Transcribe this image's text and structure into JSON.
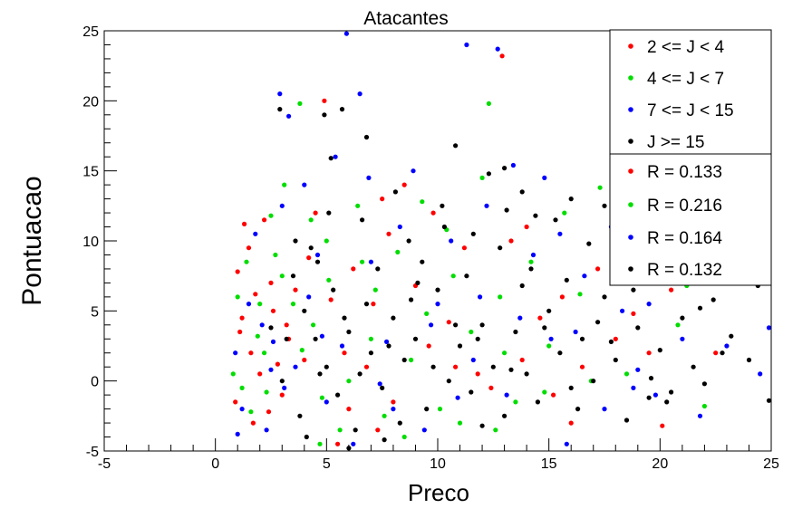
{
  "chart_data": {
    "type": "scatter",
    "title": "Atacantes",
    "xlabel": "Preco",
    "ylabel": "Pontuacao",
    "xlim": [
      -5,
      25
    ],
    "ylim": [
      -5,
      25
    ],
    "xticks": [
      -5,
      0,
      5,
      10,
      15,
      20,
      25
    ],
    "yticks": [
      -5,
      0,
      5,
      10,
      15,
      20,
      25
    ],
    "grid": false,
    "legend_position": "top-right",
    "series": [
      {
        "name": "2 <= J < 4",
        "color": "#ff0000",
        "points": [
          [
            1.0,
            7.8
          ],
          [
            1.3,
            11.2
          ],
          [
            1.5,
            9.5
          ],
          [
            1.8,
            6.2
          ],
          [
            2.2,
            11.5
          ],
          [
            2.5,
            7.0
          ],
          [
            1.1,
            3.5
          ],
          [
            1.6,
            2.0
          ],
          [
            2.0,
            0.5
          ],
          [
            2.8,
            1.2
          ],
          [
            3.2,
            4.0
          ],
          [
            0.9,
            -1.5
          ],
          [
            1.7,
            -3.0
          ],
          [
            2.4,
            -2.2
          ],
          [
            3.6,
            6.5
          ],
          [
            4.2,
            8.8
          ],
          [
            4.9,
            20.0
          ],
          [
            5.5,
            -4.5
          ],
          [
            4.5,
            12.0
          ],
          [
            3.3,
            3.0
          ],
          [
            5.8,
            2.0
          ],
          [
            6.2,
            8.0
          ],
          [
            7.1,
            5.5
          ],
          [
            7.8,
            10.5
          ],
          [
            8.5,
            14.0
          ],
          [
            7.5,
            13.0
          ],
          [
            6.8,
            1.0
          ],
          [
            9.0,
            6.8
          ],
          [
            9.6,
            2.5
          ],
          [
            10.5,
            4.2
          ],
          [
            11.2,
            9.5
          ],
          [
            11.8,
            0.5
          ],
          [
            12.4,
            -0.5
          ],
          [
            13.3,
            10.0
          ],
          [
            12.9,
            23.2
          ],
          [
            14.0,
            11.0
          ],
          [
            14.6,
            4.5
          ],
          [
            15.2,
            -1.0
          ],
          [
            16.0,
            -3.0
          ],
          [
            17.2,
            8.0
          ],
          [
            18.0,
            3.0
          ],
          [
            19.5,
            2.0
          ],
          [
            20.1,
            -3.2
          ],
          [
            20.5,
            6.5
          ],
          [
            21.4,
            9.0
          ],
          [
            22.5,
            2.0
          ],
          [
            8.0,
            -1.5
          ],
          [
            6.0,
            -2.0
          ],
          [
            4.0,
            1.5
          ],
          [
            3.0,
            -1.0
          ],
          [
            2.6,
            5.0
          ],
          [
            1.2,
            4.5
          ],
          [
            9.8,
            12.0
          ],
          [
            10.8,
            1.0
          ],
          [
            13.8,
            1.5
          ],
          [
            16.5,
            1.0
          ],
          [
            18.8,
            4.8
          ],
          [
            15.6,
            6.0
          ],
          [
            5.2,
            5.8
          ],
          [
            7.3,
            -3.5
          ]
        ]
      },
      {
        "name": "4 <= J < 7",
        "color": "#00dd00",
        "points": [
          [
            1.0,
            6.0
          ],
          [
            1.4,
            8.5
          ],
          [
            1.9,
            3.2
          ],
          [
            2.3,
            -0.8
          ],
          [
            0.8,
            0.5
          ],
          [
            2.7,
            9.0
          ],
          [
            3.1,
            14.0
          ],
          [
            3.8,
            19.8
          ],
          [
            4.3,
            11.5
          ],
          [
            4.7,
            -4.5
          ],
          [
            3.5,
            5.5
          ],
          [
            2.2,
            2.0
          ],
          [
            5.1,
            7.2
          ],
          [
            5.6,
            -3.5
          ],
          [
            6.4,
            12.5
          ],
          [
            7.0,
            3.0
          ],
          [
            7.6,
            -2.5
          ],
          [
            8.2,
            9.2
          ],
          [
            8.8,
            1.5
          ],
          [
            9.3,
            12.8
          ],
          [
            10.1,
            -2.0
          ],
          [
            10.7,
            7.5
          ],
          [
            11.5,
            3.5
          ],
          [
            12.3,
            19.8
          ],
          [
            12.0,
            14.5
          ],
          [
            12.8,
            6.0
          ],
          [
            13.5,
            -1.5
          ],
          [
            14.2,
            8.5
          ],
          [
            15.0,
            2.5
          ],
          [
            15.7,
            12.0
          ],
          [
            16.4,
            6.2
          ],
          [
            17.3,
            13.8
          ],
          [
            18.5,
            0.5
          ],
          [
            19.2,
            10.5
          ],
          [
            20.8,
            4.0
          ],
          [
            22.0,
            -1.8
          ],
          [
            2.5,
            11.8
          ],
          [
            1.6,
            -2.2
          ],
          [
            3.9,
            2.2
          ],
          [
            6.0,
            0.0
          ],
          [
            4.4,
            4.0
          ],
          [
            8.5,
            -4.0
          ],
          [
            11.0,
            -3.0
          ],
          [
            13.0,
            2.0
          ],
          [
            16.9,
            0.0
          ],
          [
            21.2,
            6.8
          ],
          [
            3.0,
            7.5
          ],
          [
            5.0,
            10.0
          ],
          [
            7.2,
            6.5
          ],
          [
            9.5,
            4.8
          ],
          [
            1.2,
            -0.5
          ],
          [
            2.0,
            5.5
          ],
          [
            10.4,
            10.8
          ],
          [
            14.8,
            -0.8
          ],
          [
            18.0,
            7.0
          ],
          [
            6.6,
            8.5
          ],
          [
            4.8,
            -1.2
          ],
          [
            12.6,
            -3.5
          ]
        ]
      },
      {
        "name": "7 <= J < 15",
        "color": "#0000ff",
        "points": [
          [
            0.9,
            2.0
          ],
          [
            1.2,
            -2.0
          ],
          [
            1.8,
            10.5
          ],
          [
            2.1,
            4.0
          ],
          [
            2.5,
            0.8
          ],
          [
            2.9,
            20.5
          ],
          [
            3.3,
            18.9
          ],
          [
            3.0,
            12.5
          ],
          [
            4.0,
            14.0
          ],
          [
            4.6,
            9.0
          ],
          [
            5.0,
            -1.5
          ],
          [
            5.9,
            24.8
          ],
          [
            6.5,
            20.5
          ],
          [
            5.4,
            16.0
          ],
          [
            6.9,
            14.5
          ],
          [
            7.7,
            2.8
          ],
          [
            8.3,
            11.0
          ],
          [
            8.9,
            15.0
          ],
          [
            9.4,
            -3.5
          ],
          [
            10.0,
            5.5
          ],
          [
            10.6,
            10.0
          ],
          [
            11.3,
            24.0
          ],
          [
            11.9,
            6.0
          ],
          [
            12.7,
            23.7
          ],
          [
            13.4,
            15.4
          ],
          [
            13.1,
            -1.0
          ],
          [
            14.3,
            9.0
          ],
          [
            15.1,
            3.0
          ],
          [
            15.8,
            -4.5
          ],
          [
            16.6,
            7.5
          ],
          [
            17.5,
            -2.0
          ],
          [
            18.3,
            5.0
          ],
          [
            19.0,
            0.8
          ],
          [
            19.8,
            -1.0
          ],
          [
            20.6,
            7.2
          ],
          [
            21.8,
            -2.5
          ],
          [
            23.0,
            2.5
          ],
          [
            24.5,
            0.5
          ],
          [
            24.9,
            3.8
          ],
          [
            1.5,
            5.5
          ],
          [
            2.3,
            -3.5
          ],
          [
            3.6,
            1.0
          ],
          [
            4.2,
            6.0
          ],
          [
            6.2,
            -4.5
          ],
          [
            7.0,
            8.5
          ],
          [
            8.0,
            -2.0
          ],
          [
            9.7,
            4.0
          ],
          [
            10.9,
            -1.2
          ],
          [
            12.2,
            12.5
          ],
          [
            14.8,
            14.5
          ],
          [
            16.2,
            3.5
          ],
          [
            17.8,
            11.0
          ],
          [
            18.8,
            -0.5
          ],
          [
            21.0,
            3.0
          ],
          [
            22.3,
            8.0
          ],
          [
            5.7,
            2.5
          ],
          [
            3.1,
            -0.5
          ],
          [
            1.0,
            -3.8
          ],
          [
            2.6,
            2.8
          ],
          [
            4.8,
            3.2
          ],
          [
            7.4,
            -0.2
          ],
          [
            11.6,
            1.5
          ],
          [
            13.7,
            4.5
          ],
          [
            15.5,
            10.5
          ],
          [
            19.5,
            5.5
          ],
          [
            20.2,
            10.2
          ]
        ]
      },
      {
        "name": "J >= 15",
        "color": "#000000",
        "points": [
          [
            2.9,
            19.4
          ],
          [
            4.9,
            19.0
          ],
          [
            5.2,
            15.9
          ],
          [
            5.7,
            19.4
          ],
          [
            6.8,
            17.4
          ],
          [
            10.8,
            16.8
          ],
          [
            12.3,
            14.8
          ],
          [
            13.0,
            15.2
          ],
          [
            13.8,
            13.5
          ],
          [
            14.4,
            11.8
          ],
          [
            16.0,
            13.0
          ],
          [
            17.5,
            12.5
          ],
          [
            18.4,
            10.0
          ],
          [
            19.2,
            9.0
          ],
          [
            20.5,
            8.2
          ],
          [
            21.3,
            7.0
          ],
          [
            22.4,
            5.8
          ],
          [
            23.2,
            3.2
          ],
          [
            24.0,
            1.5
          ],
          [
            24.4,
            6.8
          ],
          [
            24.9,
            -1.4
          ],
          [
            3.5,
            7.5
          ],
          [
            4.0,
            5.0
          ],
          [
            4.5,
            3.0
          ],
          [
            5.0,
            1.0
          ],
          [
            5.5,
            -1.0
          ],
          [
            6.0,
            3.5
          ],
          [
            6.5,
            0.5
          ],
          [
            7.0,
            2.0
          ],
          [
            7.5,
            -0.5
          ],
          [
            8.0,
            4.5
          ],
          [
            8.5,
            1.5
          ],
          [
            9.0,
            3.0
          ],
          [
            9.5,
            -2.0
          ],
          [
            10.0,
            6.5
          ],
          [
            10.5,
            0.0
          ],
          [
            11.0,
            2.5
          ],
          [
            11.5,
            -0.8
          ],
          [
            12.0,
            4.0
          ],
          [
            12.5,
            1.0
          ],
          [
            13.0,
            -2.5
          ],
          [
            13.5,
            3.5
          ],
          [
            14.0,
            0.5
          ],
          [
            14.5,
            -1.5
          ],
          [
            15.0,
            5.0
          ],
          [
            15.5,
            2.0
          ],
          [
            16.0,
            -0.5
          ],
          [
            16.5,
            3.0
          ],
          [
            17.0,
            0.0
          ],
          [
            17.5,
            6.0
          ],
          [
            18.0,
            1.5
          ],
          [
            18.5,
            -2.8
          ],
          [
            19.0,
            3.8
          ],
          [
            19.5,
            -1.2
          ],
          [
            20.0,
            2.2
          ],
          [
            20.5,
            -0.8
          ],
          [
            21.0,
            4.5
          ],
          [
            21.5,
            1.0
          ],
          [
            22.0,
            -0.2
          ],
          [
            3.0,
            0.0
          ],
          [
            3.8,
            -2.5
          ],
          [
            4.3,
            9.5
          ],
          [
            5.3,
            6.5
          ],
          [
            6.3,
            -3.5
          ],
          [
            7.3,
            8.0
          ],
          [
            8.3,
            -3.0
          ],
          [
            9.3,
            8.5
          ],
          [
            10.3,
            11.0
          ],
          [
            11.3,
            7.5
          ],
          [
            12.8,
            9.5
          ],
          [
            14.2,
            8.0
          ],
          [
            15.3,
            11.5
          ],
          [
            16.8,
            9.8
          ],
          [
            2.5,
            3.8
          ],
          [
            6.8,
            5.5
          ],
          [
            8.8,
            5.8
          ],
          [
            10.8,
            4.0
          ],
          [
            12.0,
            -3.2
          ],
          [
            13.8,
            6.8
          ],
          [
            15.8,
            7.2
          ],
          [
            3.2,
            3.0
          ],
          [
            4.7,
            0.5
          ],
          [
            5.8,
            4.5
          ],
          [
            7.8,
            2.5
          ],
          [
            9.8,
            1.0
          ],
          [
            11.8,
            3.0
          ],
          [
            13.3,
            0.8
          ],
          [
            14.8,
            3.8
          ],
          [
            16.3,
            -2.0
          ],
          [
            17.8,
            2.8
          ],
          [
            6.0,
            -4.8
          ],
          [
            4.1,
            -4.0
          ],
          [
            7.6,
            -4.2
          ],
          [
            10.2,
            12.5
          ],
          [
            8.7,
            10.0
          ],
          [
            5.1,
            12.0
          ],
          [
            4.6,
            8.5
          ],
          [
            9.1,
            7.0
          ],
          [
            11.6,
            10.5
          ],
          [
            13.1,
            12.2
          ],
          [
            3.6,
            10.0
          ],
          [
            6.6,
            11.5
          ],
          [
            8.1,
            13.5
          ],
          [
            20.3,
            -1.5
          ],
          [
            22.8,
            2.0
          ],
          [
            18.8,
            6.5
          ],
          [
            17.2,
            4.2
          ],
          [
            19.6,
            0.2
          ],
          [
            21.8,
            5.2
          ]
        ]
      },
      {
        "name": "R = 0.133",
        "color": "#ff0000",
        "points": []
      },
      {
        "name": "R = 0.216",
        "color": "#00dd00",
        "points": []
      },
      {
        "name": "R = 0.164",
        "color": "#0000ff",
        "points": []
      },
      {
        "name": "R = 0.132",
        "color": "#000000",
        "points": []
      }
    ]
  }
}
